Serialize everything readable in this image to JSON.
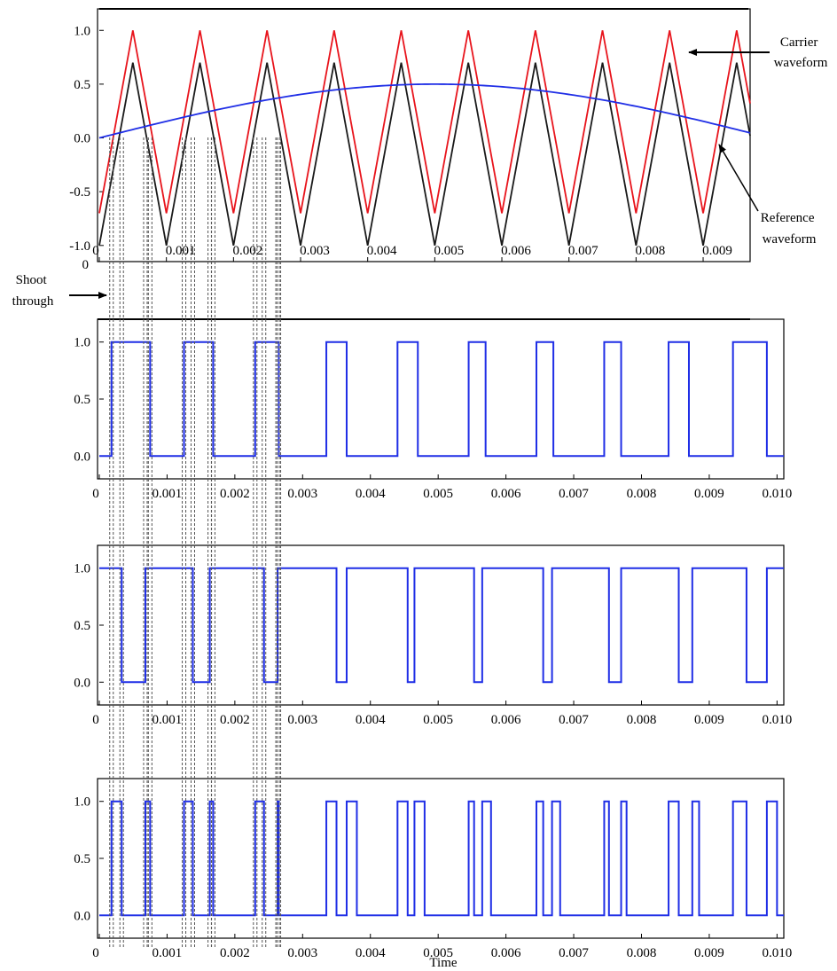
{
  "chart_data": [
    {
      "type": "line",
      "panel": "carrier-reference",
      "xlim": [
        0,
        0.0097
      ],
      "ylim": [
        -1.15,
        1.2
      ],
      "x_ticks": [
        "0",
        "0.001",
        "0.002",
        "0.003",
        "0.004",
        "0.005",
        "0.006",
        "0.007",
        "0.008",
        "0.009"
      ],
      "x_tick_values": [
        0,
        0.001,
        0.002,
        0.003,
        0.004,
        0.005,
        0.006,
        0.007,
        0.008,
        0.009
      ],
      "y_ticks": [
        "1.0",
        "0.5",
        "0.0",
        "-0.5",
        "-1.0"
      ],
      "y_tick_values": [
        1.0,
        0.5,
        0.0,
        -0.5,
        -1.0
      ],
      "y_extra_label": "0",
      "series": [
        {
          "label": "upper carrier",
          "color": "#e8141c",
          "shape": "triangle",
          "period": 0.001,
          "phase_peak": 0.0005,
          "min": -0.7,
          "max": 1.0
        },
        {
          "label": "lower carrier",
          "color": "#1a1a1a",
          "shape": "triangle",
          "period": 0.001,
          "phase_peak": 0.0005,
          "min": -1.0,
          "max": 0.7
        },
        {
          "label": "reference",
          "color": "#1f2ee6",
          "shape": "sine",
          "amplitude": 0.5,
          "period": 0.02,
          "x_end": 0.01
        }
      ],
      "annotations": [
        {
          "lines": [
            "Carrier",
            "waveform"
          ]
        },
        {
          "lines": [
            "Reference",
            "waveform"
          ]
        },
        {
          "lines": [
            "Shoot",
            "through"
          ]
        }
      ]
    },
    {
      "type": "line",
      "panel": "switching-signal-1",
      "xlim": [
        0,
        0.0101
      ],
      "ylim": [
        -0.2,
        1.2
      ],
      "x_ticks": [
        "0",
        "0.001",
        "0.002",
        "0.003",
        "0.004",
        "0.005",
        "0.006",
        "0.007",
        "0.008",
        "0.009",
        "0.010"
      ],
      "x_tick_values": [
        0,
        0.001,
        0.002,
        0.003,
        0.004,
        0.005,
        0.006,
        0.007,
        0.008,
        0.009,
        0.01
      ],
      "y_ticks": [
        "1.0",
        "0.5",
        "0.0"
      ],
      "y_tick_values": [
        1.0,
        0.5,
        0.0
      ],
      "series": [
        {
          "color": "#1f2ee6",
          "initial_level": 0,
          "transitions": [
            0.00018,
            0.00075,
            0.00125,
            0.00168,
            0.0023,
            0.00265,
            0.00335,
            0.00365,
            0.0044,
            0.0047,
            0.00545,
            0.0057,
            0.00645,
            0.0067,
            0.00745,
            0.0077,
            0.0084,
            0.0087,
            0.00935,
            0.00985
          ]
        }
      ]
    },
    {
      "type": "line",
      "panel": "switching-signal-2",
      "xlim": [
        0,
        0.0101
      ],
      "ylim": [
        -0.2,
        1.2
      ],
      "x_ticks": [
        "0",
        "0.001",
        "0.002",
        "0.003",
        "0.004",
        "0.005",
        "0.006",
        "0.007",
        "0.008",
        "0.009",
        "0.010"
      ],
      "x_tick_values": [
        0,
        0.001,
        0.002,
        0.003,
        0.004,
        0.005,
        0.006,
        0.007,
        0.008,
        0.009,
        0.01
      ],
      "y_ticks": [
        "1.0",
        "0.5",
        "0.0"
      ],
      "y_tick_values": [
        1.0,
        0.5,
        0.0
      ],
      "series": [
        {
          "color": "#1f2ee6",
          "initial_level": 1,
          "transitions": [
            0.00033,
            0.00068,
            0.00138,
            0.00163,
            0.00243,
            0.00263,
            0.0035,
            0.00365,
            0.00455,
            0.00465,
            0.00553,
            0.00565,
            0.00655,
            0.00668,
            0.00752,
            0.0077,
            0.00855,
            0.00875,
            0.00955,
            0.00985
          ]
        }
      ]
    },
    {
      "type": "line",
      "panel": "switching-signal-3",
      "xlim": [
        0,
        0.0101
      ],
      "ylim": [
        -0.2,
        1.2
      ],
      "x_ticks": [
        "0",
        "0.001",
        "0.002",
        "0.003",
        "0.004",
        "0.005",
        "0.006",
        "0.007",
        "0.008",
        "0.009",
        "0.010"
      ],
      "x_tick_values": [
        0,
        0.001,
        0.002,
        0.003,
        0.004,
        0.005,
        0.006,
        0.007,
        0.008,
        0.009,
        0.01
      ],
      "y_ticks": [
        "1.0",
        "0.5",
        "0.0"
      ],
      "y_tick_values": [
        1.0,
        0.5,
        0.0
      ],
      "xlabel": "Time",
      "series": [
        {
          "color": "#1f2ee6",
          "initial_level": 0,
          "transitions": [
            0.00018,
            0.00033,
            0.00068,
            0.00075,
            0.00125,
            0.00138,
            0.00163,
            0.00168,
            0.0023,
            0.00243,
            0.00263,
            0.00265,
            0.00335,
            0.0035,
            0.00365,
            0.0038,
            0.0044,
            0.00455,
            0.00465,
            0.0048,
            0.00545,
            0.00553,
            0.00565,
            0.00578,
            0.00645,
            0.00655,
            0.00668,
            0.0068,
            0.00745,
            0.00752,
            0.0077,
            0.00778,
            0.0084,
            0.00855,
            0.00875,
            0.00885,
            0.00935,
            0.00955,
            0.00985,
            0.01
          ]
        }
      ]
    }
  ]
}
